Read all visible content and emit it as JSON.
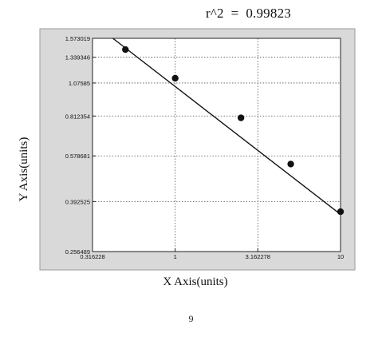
{
  "annotation": "r^2  =  0.99823",
  "page_number": "9",
  "chart_data": {
    "type": "scatter",
    "xscale": "log",
    "yscale": "log",
    "xlabel": "X Axis(units)",
    "ylabel": "Y Axis(units)",
    "xlim": [
      0.316228,
      10
    ],
    "ylim": [
      0.256489,
      1.573019
    ],
    "x_ticks": [
      {
        "value": 0.316228,
        "label": "0.316228"
      },
      {
        "value": 1,
        "label": "1"
      },
      {
        "value": 3.162278,
        "label": "3.162278"
      },
      {
        "value": 10,
        "label": "10"
      }
    ],
    "y_ticks": [
      {
        "value": 1.573019,
        "label": "1.573019"
      },
      {
        "value": 1.339346,
        "label": "1.339346"
      },
      {
        "value": 1.07585,
        "label": "1.07585"
      },
      {
        "value": 0.812354,
        "label": "0.812354"
      },
      {
        "value": 0.578681,
        "label": "0.578681"
      },
      {
        "value": 0.392525,
        "label": "0.392525"
      },
      {
        "value": 0.256489,
        "label": "0.256489"
      }
    ],
    "points": [
      {
        "x": 0.5,
        "y": 1.43
      },
      {
        "x": 1.0,
        "y": 1.12
      },
      {
        "x": 2.5,
        "y": 0.8
      },
      {
        "x": 5.0,
        "y": 0.54
      },
      {
        "x": 10.0,
        "y": 0.36
      }
    ],
    "fit_line": [
      {
        "x": 0.42,
        "y": 1.573019
      },
      {
        "x": 10.0,
        "y": 0.352
      }
    ],
    "grid": true,
    "grid_style": "dotted",
    "background": "#d9d9d9",
    "plot_background": "#ffffff",
    "marker_color": "#111111",
    "line_color": "#111111"
  }
}
